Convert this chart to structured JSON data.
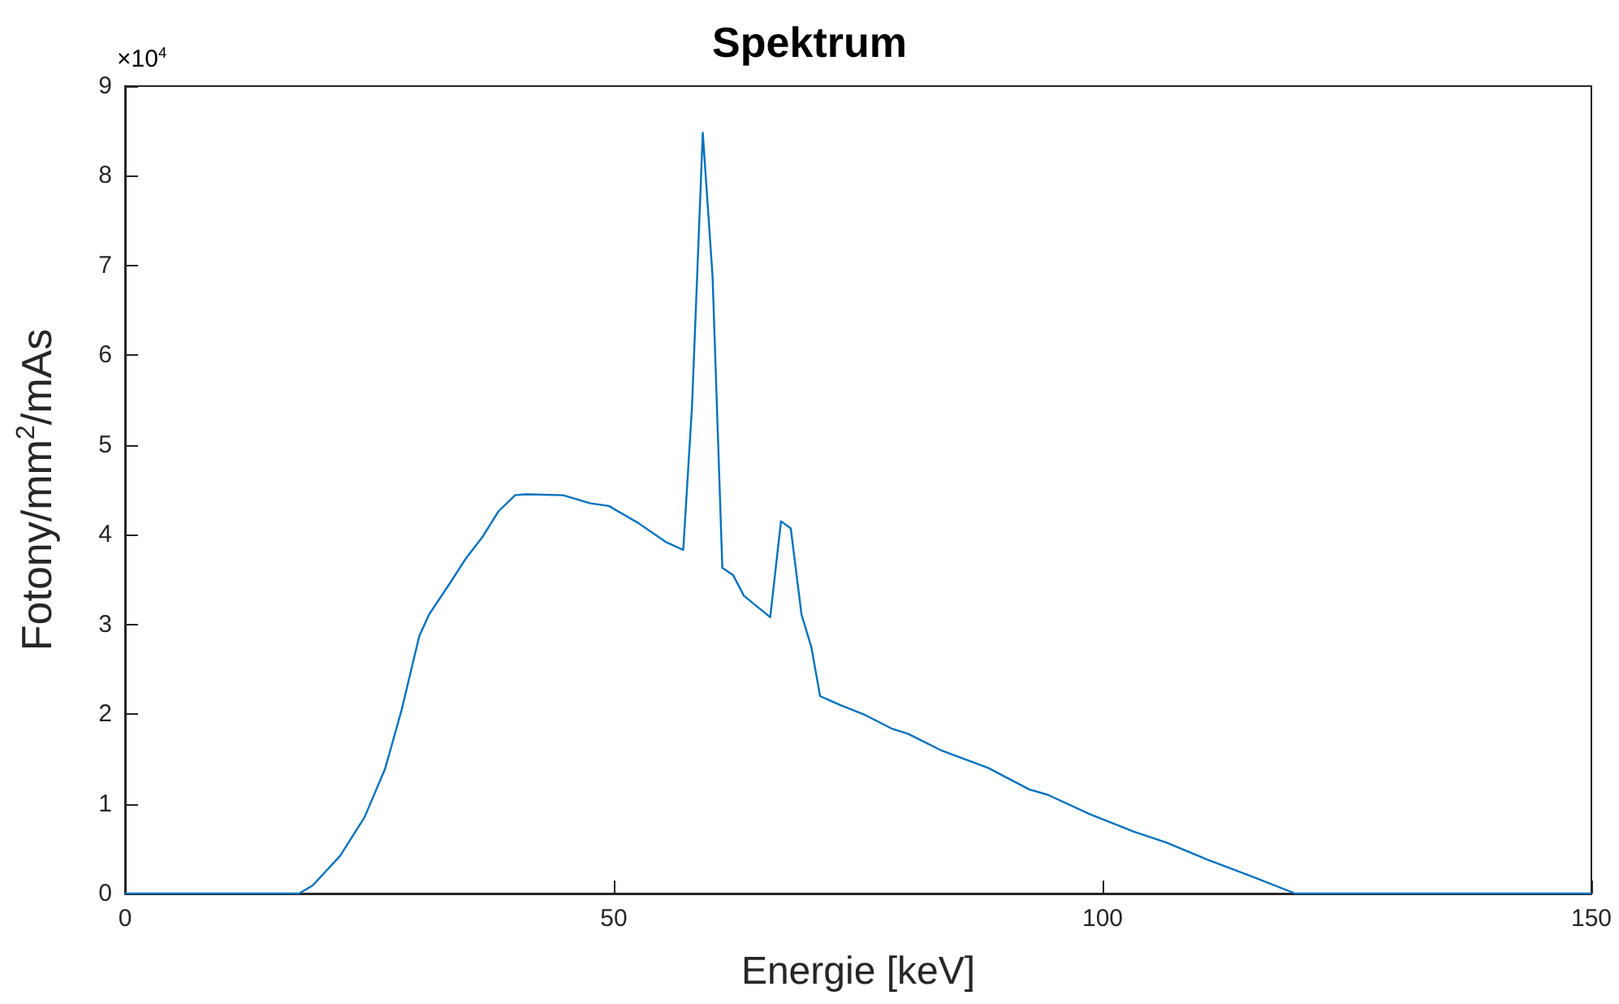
{
  "chart_data": {
    "type": "line",
    "title": "Spektrum",
    "xlabel": "Energie [keV]",
    "ylabel": "Fotony/mm$^{2}$/mAs",
    "annotations": [
      "×10$^{4}$"
    ],
    "x": [
      0,
      17.8,
      19.2,
      22.0,
      24.5,
      26.6,
      28.3,
      30.1,
      31.1,
      33.3,
      34.9,
      36.6,
      38.2,
      39.9,
      41.0,
      44.8,
      47.6,
      49.5,
      52.5,
      55.3,
      57.1,
      58.0,
      59.1,
      60.1,
      61.1,
      62.2,
      63.3,
      66.0,
      67.1,
      68.1,
      69.2,
      70.2,
      71.1,
      73.2,
      75.7,
      78.4,
      80.1,
      83.4,
      88.3,
      92.5,
      94.4,
      98.8,
      103.2,
      106.5,
      110.9,
      115.3,
      119.7,
      150
    ],
    "series": [
      {
        "color": "#0072bd",
        "values": [
          0,
          0,
          0.09,
          0.42,
          0.85,
          1.39,
          2.05,
          2.87,
          3.11,
          3.47,
          3.74,
          3.98,
          4.26,
          4.44,
          4.45,
          4.44,
          4.35,
          4.32,
          4.13,
          3.92,
          3.83,
          5.43,
          8.48,
          6.88,
          3.63,
          3.55,
          3.32,
          3.08,
          4.15,
          4.07,
          3.11,
          2.75,
          2.2,
          2.1,
          1.99,
          1.84,
          1.78,
          1.6,
          1.4,
          1.16,
          1.1,
          0.88,
          0.69,
          0.57,
          0.37,
          0.19,
          0,
          0
        ]
      }
    ],
    "xlim": [
      0,
      150
    ],
    "xticks": [
      0,
      50,
      100,
      150
    ],
    "ylim": [
      0,
      9
    ],
    "yticks": [
      0,
      1,
      2,
      3,
      4,
      5,
      6,
      7,
      8,
      9
    ],
    "grid": false,
    "marker": "none",
    "line_style": "solid"
  }
}
